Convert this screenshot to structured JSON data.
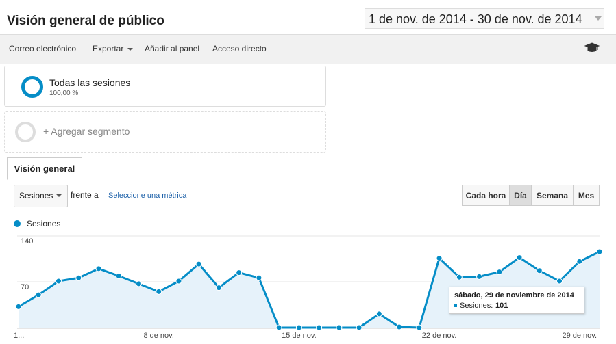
{
  "header": {
    "title": "Visión general de público",
    "date_range": "1 de nov. de 2014 - 30 de nov. de 2014"
  },
  "toolbar": [
    "Correo electrónico",
    "Exportar",
    "Añadir al panel",
    "Acceso directo"
  ],
  "segments": [
    {
      "name": "Todas las sesiones",
      "share": "100,00 %"
    }
  ],
  "add_segment": "+ Agregar segmento",
  "tab": "Visión general",
  "controls": {
    "metric": "Sesiones",
    "versus": "frente a",
    "select_metric": "Seleccione una métrica",
    "granularity": [
      "Cada hora",
      "Día",
      "Semana",
      "Mes"
    ]
  },
  "tooltip": {
    "title": "sábado, 29 de noviembre de 2014",
    "label": "Sesiones:"
  },
  "chart_data": {
    "type": "area",
    "categories": [
      "1...",
      null,
      null,
      null,
      null,
      null,
      null,
      "8 de nov.",
      null,
      null,
      null,
      null,
      null,
      null,
      "15 de nov.",
      null,
      null,
      null,
      null,
      null,
      null,
      "22 de nov.",
      null,
      null,
      null,
      null,
      null,
      null,
      "29 de nov.",
      null
    ],
    "series": [
      {
        "name": "Sesiones",
        "color": "#058dc7",
        "values": [
          32,
          50,
          71,
          76,
          90,
          79,
          67,
          55,
          71,
          97,
          61,
          84,
          76,
          0,
          0,
          0,
          0,
          0,
          21,
          1,
          0,
          106,
          77,
          78,
          85,
          107,
          87,
          71,
          101,
          116
        ]
      }
    ],
    "ylim": [
      0,
      140
    ],
    "yticks": [
      70,
      140
    ],
    "grid": true
  }
}
